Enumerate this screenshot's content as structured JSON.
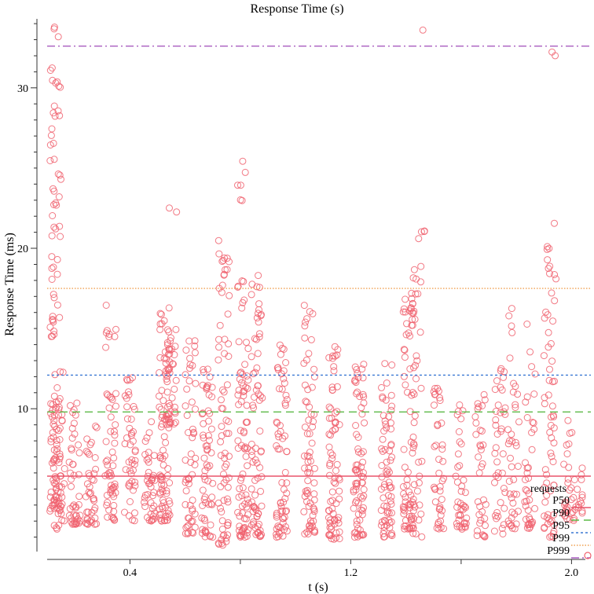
{
  "chart_data": {
    "type": "scatter",
    "title": "Response Time (s)",
    "xlabel": "t (s)",
    "ylabel": "Response Time (ms)",
    "xlim": [
      0.1,
      2.05
    ],
    "ylim": [
      1.1,
      34.3
    ],
    "x_ticks": [
      {
        "value": 0.4,
        "label": "0.4"
      },
      {
        "value": 0.8,
        "label": ""
      },
      {
        "value": 1.2,
        "label": "1.2"
      },
      {
        "value": 1.6,
        "label": ""
      },
      {
        "value": 2.0,
        "label": "2.0"
      }
    ],
    "y_ticks": [
      {
        "value": 10,
        "label": "10"
      },
      {
        "value": 20,
        "label": "20"
      },
      {
        "value": 30,
        "label": "30"
      }
    ],
    "grid": false,
    "legend": {
      "title": "requests",
      "placement": "bottom-right",
      "entries": [
        "P50",
        "P90",
        "P95",
        "P99",
        "P999"
      ]
    },
    "percentiles": [
      {
        "name": "P50",
        "value": 5.8,
        "color": "#e8546a",
        "dash": "none"
      },
      {
        "name": "P90",
        "value": 9.8,
        "color": "#5cba47",
        "dash": "10,6"
      },
      {
        "name": "P95",
        "value": 12.1,
        "color": "#3b78d4",
        "dash": "3,3"
      },
      {
        "name": "P99",
        "value": 17.5,
        "color": "#f0a050",
        "dash": "1.5,2"
      },
      {
        "name": "P999",
        "value": 32.6,
        "color": "#a95cc0",
        "dash": "10,4,2,4"
      }
    ],
    "series": [
      {
        "name": "requests",
        "color": "#f0626e",
        "clusters": [
          {
            "x": 0.13,
            "lo": 3.5,
            "hi": 10.5,
            "n": 60
          },
          {
            "x": 0.13,
            "lo": 14.5,
            "hi": 34.2,
            "n": 55
          },
          {
            "x": 0.145,
            "lo": 2.5,
            "hi": 12.5,
            "n": 40
          },
          {
            "x": 0.2,
            "lo": 2.8,
            "hi": 10.5,
            "n": 45
          },
          {
            "x": 0.26,
            "lo": 2.8,
            "hi": 9.8,
            "n": 40
          },
          {
            "x": 0.33,
            "lo": 3.0,
            "hi": 11.5,
            "n": 50
          },
          {
            "x": 0.33,
            "lo": 13.5,
            "hi": 17.2,
            "n": 8
          },
          {
            "x": 0.4,
            "lo": 3.0,
            "hi": 12.0,
            "n": 45
          },
          {
            "x": 0.47,
            "lo": 3.0,
            "hi": 9.5,
            "n": 40
          },
          {
            "x": 0.525,
            "lo": 3.0,
            "hi": 16.3,
            "n": 90
          },
          {
            "x": 0.55,
            "lo": 9.0,
            "hi": 15.0,
            "n": 35
          },
          {
            "x": 0.55,
            "lo": 22.0,
            "hi": 22.6,
            "n": 2
          },
          {
            "x": 0.62,
            "lo": 2.2,
            "hi": 15.0,
            "n": 55
          },
          {
            "x": 0.68,
            "lo": 2.0,
            "hi": 12.5,
            "n": 60
          },
          {
            "x": 0.74,
            "lo": 1.5,
            "hi": 20.5,
            "n": 70
          },
          {
            "x": 0.81,
            "lo": 2.0,
            "hi": 18.0,
            "n": 80
          },
          {
            "x": 0.81,
            "lo": 22.5,
            "hi": 25.8,
            "n": 6
          },
          {
            "x": 0.86,
            "lo": 2.0,
            "hi": 18.5,
            "n": 75
          },
          {
            "x": 0.95,
            "lo": 2.0,
            "hi": 14.0,
            "n": 65
          },
          {
            "x": 1.05,
            "lo": 2.2,
            "hi": 16.5,
            "n": 70
          },
          {
            "x": 1.14,
            "lo": 1.8,
            "hi": 14.0,
            "n": 75
          },
          {
            "x": 1.23,
            "lo": 2.0,
            "hi": 13.0,
            "n": 75
          },
          {
            "x": 1.33,
            "lo": 2.0,
            "hi": 13.0,
            "n": 70
          },
          {
            "x": 1.41,
            "lo": 2.5,
            "hi": 17.5,
            "n": 70
          },
          {
            "x": 1.44,
            "lo": 2.0,
            "hi": 19.0,
            "n": 40
          },
          {
            "x": 1.45,
            "lo": 20.0,
            "hi": 22.0,
            "n": 4
          },
          {
            "x": 1.45,
            "lo": 33.6,
            "hi": 33.9,
            "n": 1
          },
          {
            "x": 1.52,
            "lo": 2.5,
            "hi": 11.5,
            "n": 40
          },
          {
            "x": 1.6,
            "lo": 2.5,
            "hi": 10.5,
            "n": 40
          },
          {
            "x": 1.67,
            "lo": 2.0,
            "hi": 11.0,
            "n": 35
          },
          {
            "x": 1.74,
            "lo": 2.0,
            "hi": 15.0,
            "n": 40
          },
          {
            "x": 1.79,
            "lo": 2.5,
            "hi": 16.5,
            "n": 40
          },
          {
            "x": 1.85,
            "lo": 2.5,
            "hi": 15.5,
            "n": 40
          },
          {
            "x": 1.92,
            "lo": 2.0,
            "hi": 17.5,
            "n": 55
          },
          {
            "x": 1.93,
            "lo": 18.0,
            "hi": 24.0,
            "n": 10
          },
          {
            "x": 1.94,
            "lo": 32.0,
            "hi": 32.6,
            "n": 2
          },
          {
            "x": 1.99,
            "lo": 3.0,
            "hi": 9.5,
            "n": 30
          },
          {
            "x": 2.03,
            "lo": 3.5,
            "hi": 6.5,
            "n": 15
          }
        ]
      }
    ]
  }
}
